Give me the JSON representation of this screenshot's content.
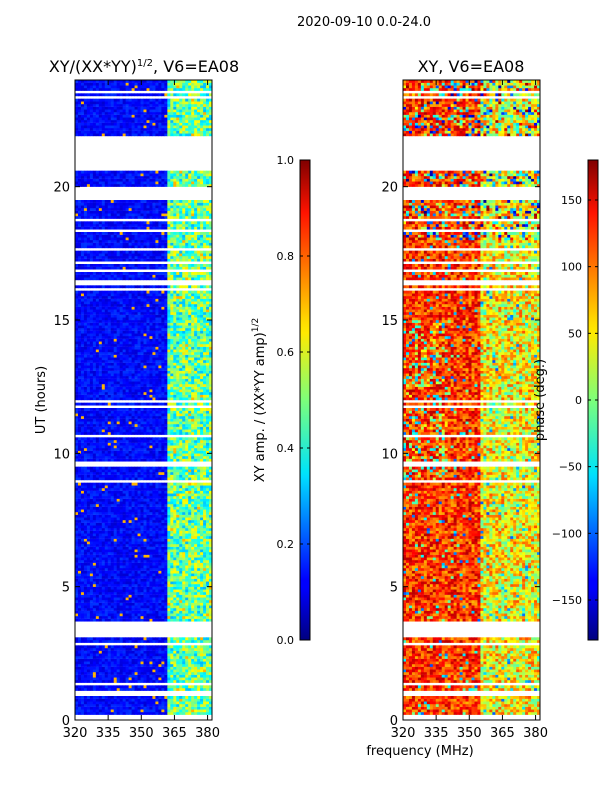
{
  "figure": {
    "suptitle": "2020-09-10 0.0-24.0",
    "shared_xlabel": "frequency (MHz)"
  },
  "colors": {
    "background": "#ffffff",
    "axis": "#000000",
    "missing_data_gap": "#ffffff"
  },
  "chart_data": [
    {
      "type": "heatmap",
      "title_main": "XY/(XX*YY)",
      "title_sup": "1/2",
      "title_tail": ", V6=EA08",
      "xlabel": "",
      "ylabel": "UT (hours)",
      "xlim": [
        320,
        382
      ],
      "ylim": [
        0,
        24
      ],
      "xticks": [
        320,
        335,
        350,
        365,
        380
      ],
      "yticks": [
        0,
        5,
        10,
        15,
        20
      ],
      "colormap": "jet",
      "color_range": [
        0.0,
        1.0
      ],
      "gaps_hours": [
        [
          3.25,
          3.55
        ],
        [
          19.55,
          19.9
        ],
        [
          20.6,
          21.9
        ],
        [
          16.1,
          16.2
        ],
        [
          9.5,
          9.65
        ],
        [
          0.9,
          1.0
        ]
      ],
      "description": "mostly low amplitude (~0.1) except bright band 362-382 MHz (~0.3-0.6)",
      "colorbar": {
        "label_main": "XY amp. / (XX*YY amp)",
        "label_sup": "1/2",
        "ticks": [
          0.0,
          0.2,
          0.4,
          0.6,
          0.8,
          1.0
        ],
        "tick_labels": [
          "0.0",
          "0.2",
          "0.4",
          "0.6",
          "0.8",
          "1.0"
        ],
        "range": [
          0.0,
          1.0
        ]
      }
    },
    {
      "type": "heatmap",
      "title": "XY, V6=EA08",
      "xlabel": "",
      "ylabel": "",
      "xlim": [
        320,
        382
      ],
      "ylim": [
        0,
        24
      ],
      "xticks": [
        320,
        335,
        350,
        365,
        380
      ],
      "yticks": [
        0,
        5,
        10,
        15,
        20
      ],
      "colormap": "jet",
      "color_range": [
        -180,
        180
      ],
      "gaps_hours": [
        [
          3.25,
          3.55
        ],
        [
          19.55,
          19.9
        ],
        [
          20.6,
          21.9
        ],
        [
          16.1,
          16.2
        ],
        [
          9.5,
          9.65
        ],
        [
          0.9,
          1.0
        ]
      ],
      "description": "phase mostly ~ +100 to +180 deg at low frequencies, mixed green/yellow near 355-380 MHz",
      "colorbar": {
        "label": "phase (deg.)",
        "ticks": [
          -150,
          -100,
          -50,
          0,
          50,
          100,
          150
        ],
        "tick_labels": [
          "−150",
          "−100",
          "−50",
          "0",
          "50",
          "100",
          "150"
        ],
        "range": [
          -180,
          180
        ]
      }
    }
  ]
}
